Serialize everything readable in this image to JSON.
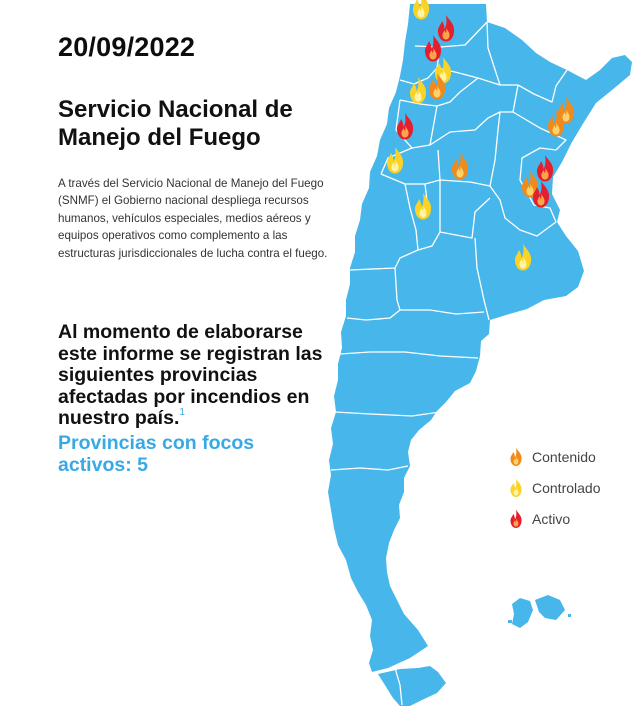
{
  "date": "20/09/2022",
  "title_line1": "Servicio Nacional de",
  "title_line2": "Manejo del Fuego",
  "intro": "A través del Servicio Nacional de Manejo del Fuego (SNMF) el Gobierno nacional despliega recursos humanos, vehículos especiales, medios aéreos y equipos operativos como complemento a las estructuras jurisdiccionales de lucha contra el fuego.",
  "headline": "Al momento de elaborarse este informe se registran las siguientes provincias afectadas por incendios en nuestro país.",
  "footnote_mark": "1",
  "active_line1": "Provincias con focos",
  "active_line2": "activos: 5",
  "colors": {
    "land": "#47b6ea",
    "border": "#ffffff",
    "accent": "#38a9e4",
    "contenido": "#f08a1c",
    "controlado": "#fbd327",
    "activo": "#e5202e"
  },
  "legend": [
    {
      "label": "Contenido",
      "status": "contenido"
    },
    {
      "label": "Controlado",
      "status": "controlado"
    },
    {
      "label": "Activo",
      "status": "activo"
    }
  ],
  "fires": [
    {
      "status": "controlado"
    },
    {
      "status": "activo"
    },
    {
      "status": "activo"
    },
    {
      "status": "controlado"
    },
    {
      "status": "contenido"
    },
    {
      "status": "controlado"
    },
    {
      "status": "activo"
    },
    {
      "status": "contenido"
    },
    {
      "status": "contenido"
    },
    {
      "status": "controlado"
    },
    {
      "status": "contenido"
    },
    {
      "status": "activo"
    },
    {
      "status": "contenido"
    },
    {
      "status": "activo"
    },
    {
      "status": "controlado"
    },
    {
      "status": "controlado"
    }
  ]
}
